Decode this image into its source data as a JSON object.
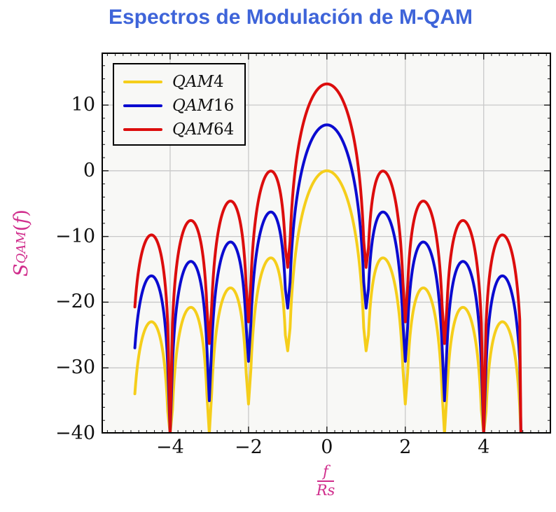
{
  "chart_data": {
    "type": "line",
    "title": "Espectros de Modulación de M-QAM",
    "xlabel": {
      "numerator": "f",
      "denominator": "Rs"
    },
    "ylabel": {
      "base": "S",
      "subscript": "QAM",
      "arg_open": "(",
      "arg_var": "f",
      "arg_close": ")"
    },
    "xlim": [
      -5.75,
      5.72
    ],
    "ylim": [
      -40,
      18
    ],
    "xticks": {
      "values": [
        -4,
        -2,
        0,
        2,
        4
      ],
      "labels": [
        "−4",
        "−2",
        "0",
        "2",
        "4"
      ]
    },
    "yticks": {
      "values": [
        10,
        0,
        -10,
        -20,
        -30,
        -40
      ],
      "labels": [
        "10",
        "0",
        "−10",
        "−20",
        "−30",
        "−40"
      ]
    },
    "minor_tick_step_x": 0.2,
    "minor_tick_step_y": 2,
    "grid": true,
    "legend_position": "top-left",
    "domain": [
      -4.9,
      4.93
    ],
    "sample_step": 0.02,
    "end_plunge": {
      "x": 4.95,
      "y": -40
    },
    "formula": "S(f) = offset_db + 10*log10( (sin(pi·f/Rs)/(pi·f/Rs))^2 ), nulls at integer f/Rs",
    "series": [
      {
        "name": "QAM4",
        "color": "#F5CE1B",
        "offset_db": 0,
        "peak_db": 0,
        "null_depths_db": {
          "1": -27.4,
          "2": -35.5,
          "3": -40,
          "4": -40
        }
      },
      {
        "name": "QAM16",
        "color": "#0B0BD0",
        "offset_db": 6.99,
        "peak_db": 7,
        "null_depths_db": {
          "1": -20.9,
          "2": -29.0,
          "3": -35.0,
          "4": -40
        }
      },
      {
        "name": "QAM64",
        "color": "#DC0D0D",
        "offset_db": 13.22,
        "peak_db": 13.2,
        "null_depths_db": {
          "1": -14.7,
          "2": -23.0,
          "3": -26.3,
          "4": -40
        }
      }
    ]
  },
  "styles": {
    "title_color": "#3E64D9",
    "label_magenta": "#D02D8C",
    "plot_bg": "#F8F8F6",
    "grid_color": "#C9C9C9",
    "tick_color": "#1A1A1A",
    "frame_color": "#000000"
  }
}
